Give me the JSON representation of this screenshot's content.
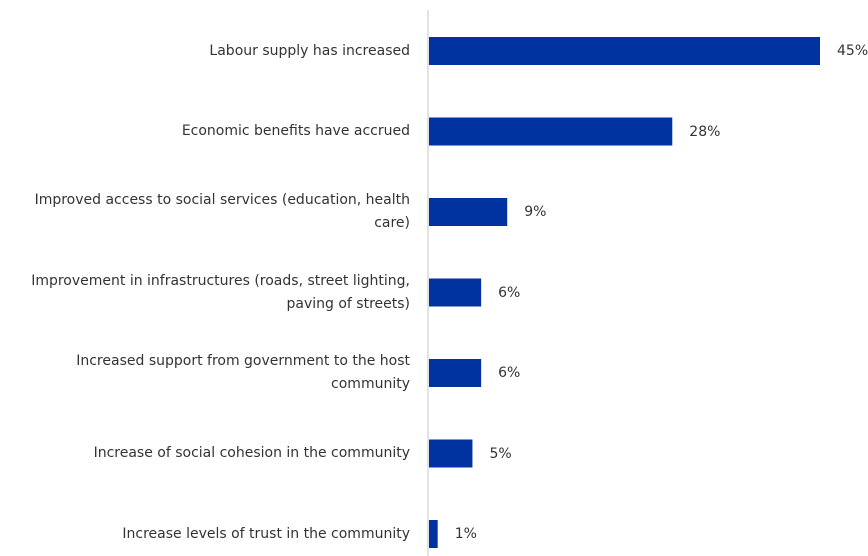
{
  "chart_data": {
    "type": "bar",
    "orientation": "horizontal",
    "categories": [
      "Labour supply has increased",
      "Economic benefits have accrued",
      "Improved access to social services (education, health care)",
      "Improvement in infrastructures (roads, street lighting, paving of streets)",
      "Increased support from government to the host community",
      "Increase of social cohesion in the community",
      "Increase levels of trust in the community"
    ],
    "values": [
      45,
      28,
      9,
      6,
      6,
      5,
      1
    ],
    "value_labels": [
      "45%",
      "28%",
      "9%",
      "6%",
      "6%",
      "5%",
      "1%"
    ],
    "unit": "%",
    "xlim": [
      0,
      45
    ],
    "grid": false,
    "legend": "none",
    "bar_color": "#0033a0",
    "axis_color": "#d9d9d9"
  }
}
